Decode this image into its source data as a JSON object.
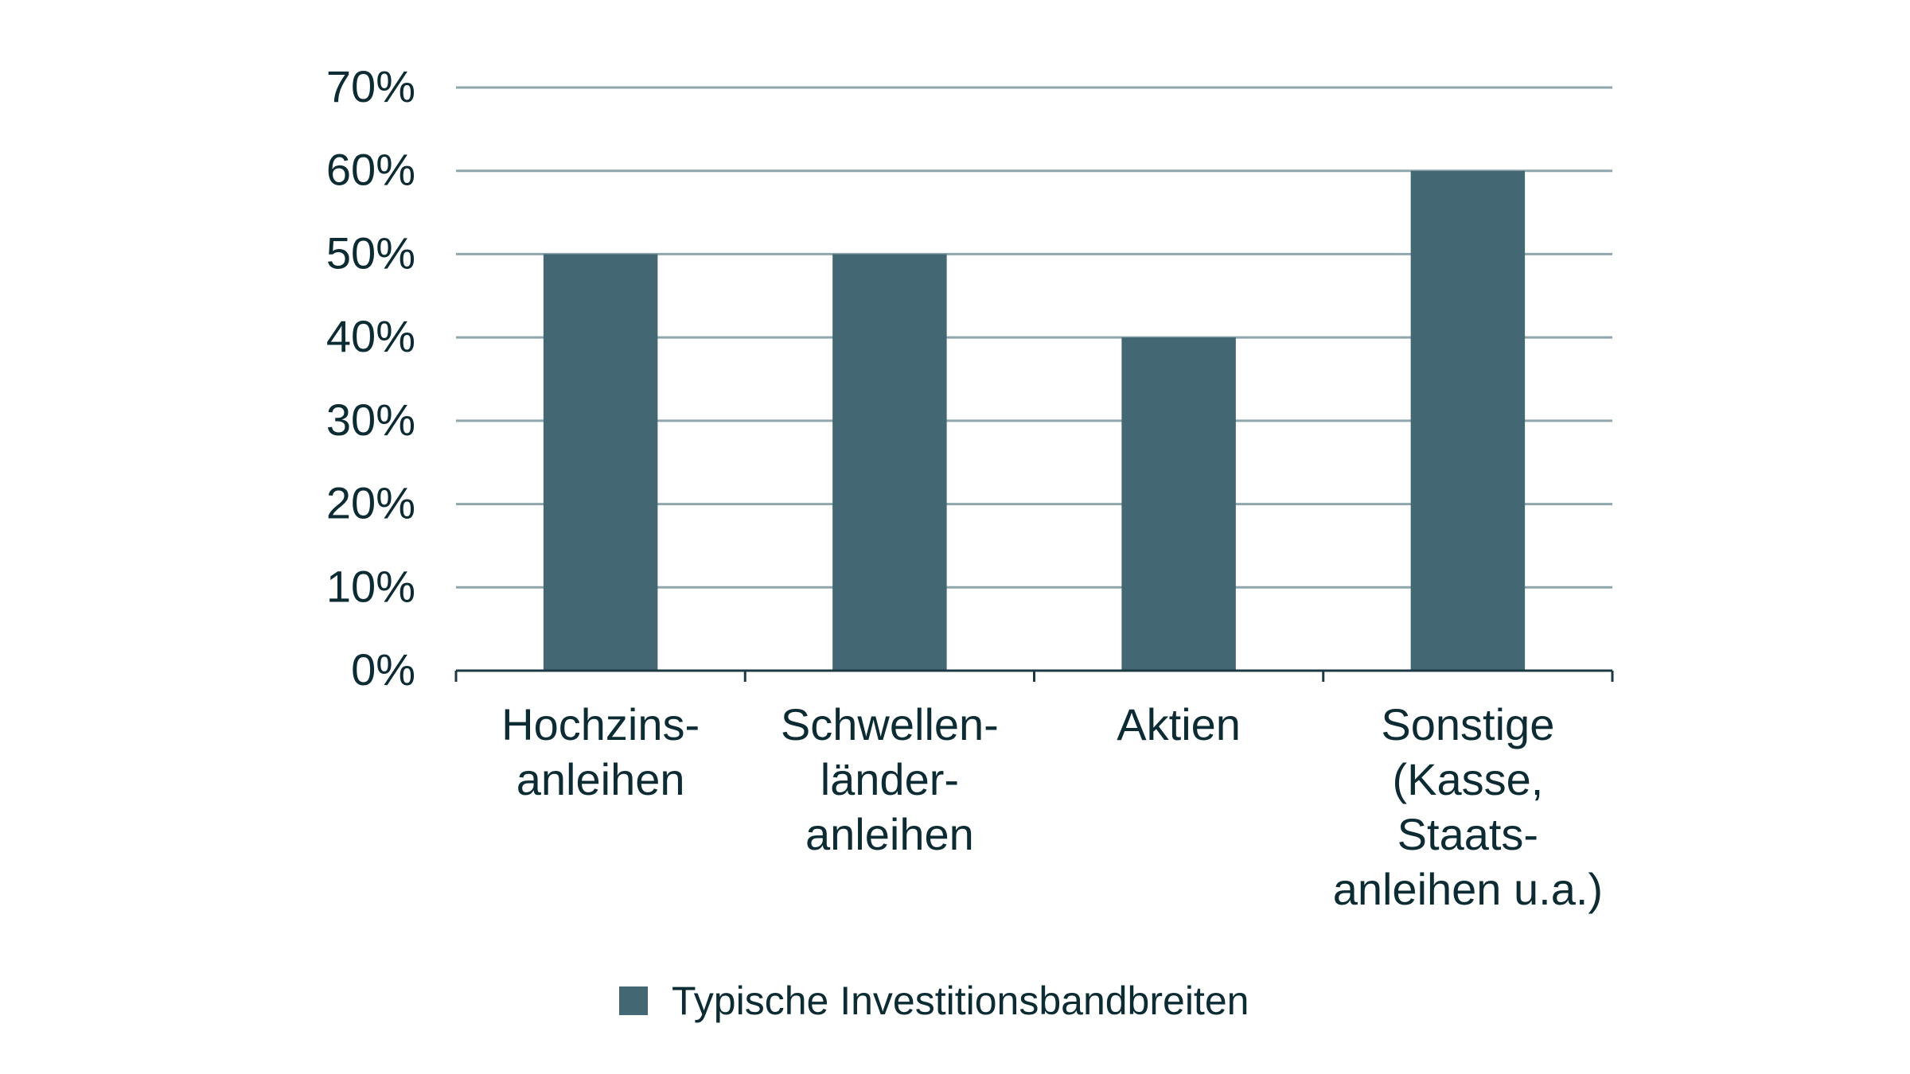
{
  "chart_data": {
    "type": "bar",
    "title": "",
    "xlabel": "",
    "ylabel": "",
    "categories": [
      [
        "Hochzins-",
        "anleihen"
      ],
      [
        "Schwellen-",
        "länder-",
        "anleihen"
      ],
      [
        "Aktien"
      ],
      [
        "Sonstige",
        "(Kasse,",
        "Staats-",
        "anleihen u.a.)"
      ]
    ],
    "series": [
      {
        "name": "Typische Investitionsbandbreiten",
        "values": [
          50,
          50,
          40,
          60
        ],
        "color": "#436874"
      }
    ],
    "ylim": [
      0,
      70
    ],
    "y_ticks": [
      "0%",
      "10%",
      "20%",
      "30%",
      "40%",
      "50%",
      "60%",
      "70%"
    ],
    "grid": true,
    "legend": "bottom-center"
  }
}
